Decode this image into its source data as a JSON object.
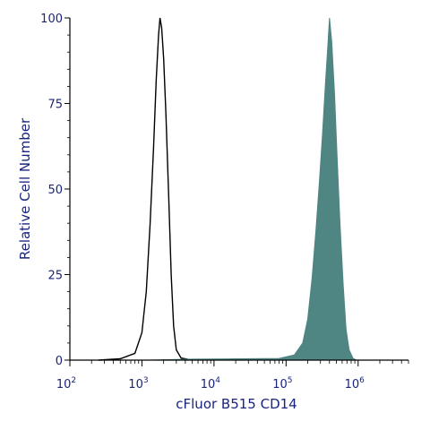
{
  "chart_data": {
    "type": "area",
    "xlabel": "cFluor B515 CD14",
    "ylabel": "Relative Cell Number",
    "x_scale": "log",
    "xlim": [
      100,
      5000000
    ],
    "ylim": [
      0,
      100
    ],
    "x_ticks": [
      {
        "base": "10",
        "exp": "2",
        "value": 100
      },
      {
        "base": "10",
        "exp": "3",
        "value": 1000
      },
      {
        "base": "10",
        "exp": "4",
        "value": 10000
      },
      {
        "base": "10",
        "exp": "5",
        "value": 100000
      },
      {
        "base": "10",
        "exp": "6",
        "value": 1000000
      }
    ],
    "y_ticks": [
      "0",
      "25",
      "50",
      "75",
      "100"
    ],
    "series": [
      {
        "style": "outline",
        "color": "#000000",
        "points": [
          [
            250,
            0
          ],
          [
            500,
            0.4
          ],
          [
            800,
            2
          ],
          [
            1000,
            8
          ],
          [
            1150,
            20
          ],
          [
            1300,
            40
          ],
          [
            1450,
            62
          ],
          [
            1580,
            82
          ],
          [
            1700,
            95
          ],
          [
            1780,
            100
          ],
          [
            1880,
            97
          ],
          [
            2000,
            88
          ],
          [
            2150,
            72
          ],
          [
            2350,
            48
          ],
          [
            2550,
            25
          ],
          [
            2750,
            10
          ],
          [
            3000,
            3
          ],
          [
            3500,
            0.6
          ],
          [
            5000,
            0
          ]
        ]
      },
      {
        "style": "filled",
        "color": "#4f8582",
        "points": [
          [
            1200,
            0
          ],
          [
            5000,
            0.3
          ],
          [
            20000,
            0.4
          ],
          [
            80000,
            0.5
          ],
          [
            130000,
            1.5
          ],
          [
            170000,
            5
          ],
          [
            200000,
            12
          ],
          [
            230000,
            24
          ],
          [
            260000,
            38
          ],
          [
            290000,
            52
          ],
          [
            320000,
            66
          ],
          [
            350000,
            80
          ],
          [
            380000,
            92
          ],
          [
            400000,
            100
          ],
          [
            430000,
            93
          ],
          [
            470000,
            78
          ],
          [
            510000,
            60
          ],
          [
            560000,
            40
          ],
          [
            620000,
            22
          ],
          [
            680000,
            9
          ],
          [
            750000,
            3
          ],
          [
            850000,
            0.5
          ],
          [
            950000,
            0
          ]
        ]
      }
    ]
  }
}
